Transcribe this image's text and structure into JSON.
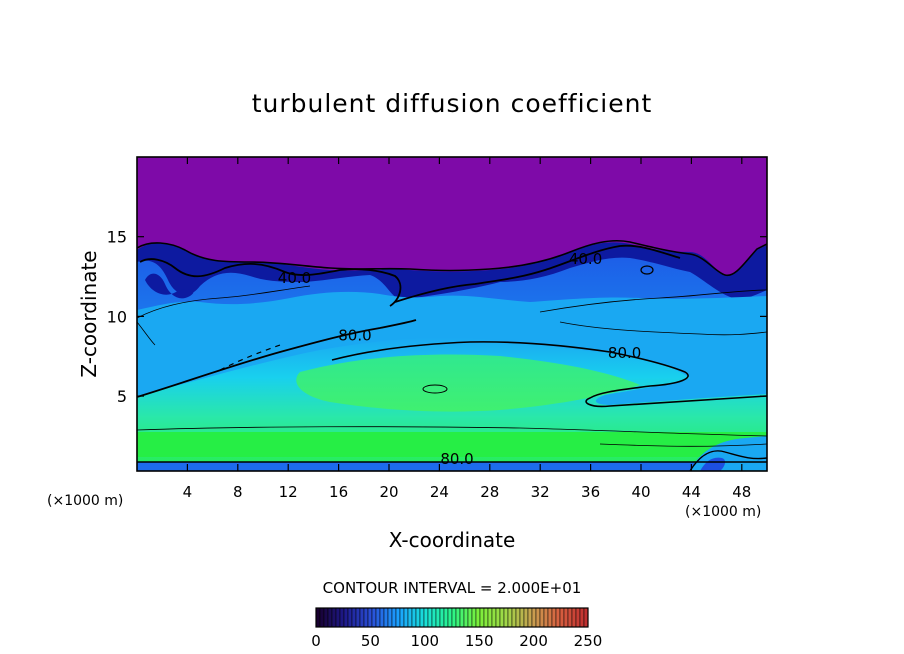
{
  "chart_data": {
    "type": "heatmap",
    "title": "turbulent diffusion coefficient",
    "xlabel": "X-coordinate",
    "ylabel": "Z-coordinate",
    "x_unit": "(×1000 m)",
    "xlim": [
      0,
      50
    ],
    "ylim": [
      0.3,
      20
    ],
    "xticks": [
      "4",
      "8",
      "12",
      "16",
      "20",
      "24",
      "28",
      "32",
      "36",
      "40",
      "44",
      "48"
    ],
    "yticks": [
      "5",
      "10",
      "15"
    ],
    "contour_interval_text": "CONTOUR INTERVAL = 2.000E+01",
    "contour_interval": 20,
    "contour_labels": [
      {
        "text": "40.0",
        "x": 12.5,
        "z": 12.1
      },
      {
        "text": "40.0",
        "x": 35.6,
        "z": 13.3
      },
      {
        "text": "80.0",
        "x": 17.3,
        "z": 8.5
      },
      {
        "text": "80.0",
        "x": 38.7,
        "z": 7.4
      },
      {
        "text": "80.0",
        "x": 25.4,
        "z": 0.75
      }
    ],
    "colorbar": {
      "min": 0,
      "max": 250,
      "ticks": [
        "0",
        "50",
        "100",
        "150",
        "200",
        "250"
      ],
      "colors": [
        "#180030",
        "#1e1a8c",
        "#2a4fd8",
        "#1aa0ff",
        "#19e0d8",
        "#2af58a",
        "#7cf03a",
        "#a0d848",
        "#c8a050",
        "#d86040",
        "#c03030"
      ]
    },
    "colors": {
      "background": "#ffffff",
      "upper_region": "#7e0aa8",
      "dark_band": "#0d1aa0",
      "mid_blue": "#1d6cec",
      "light_blue": "#1aa8f2",
      "cyan": "#19dfe6",
      "green": "#3af07a",
      "bright_green": "#26ee45"
    }
  }
}
